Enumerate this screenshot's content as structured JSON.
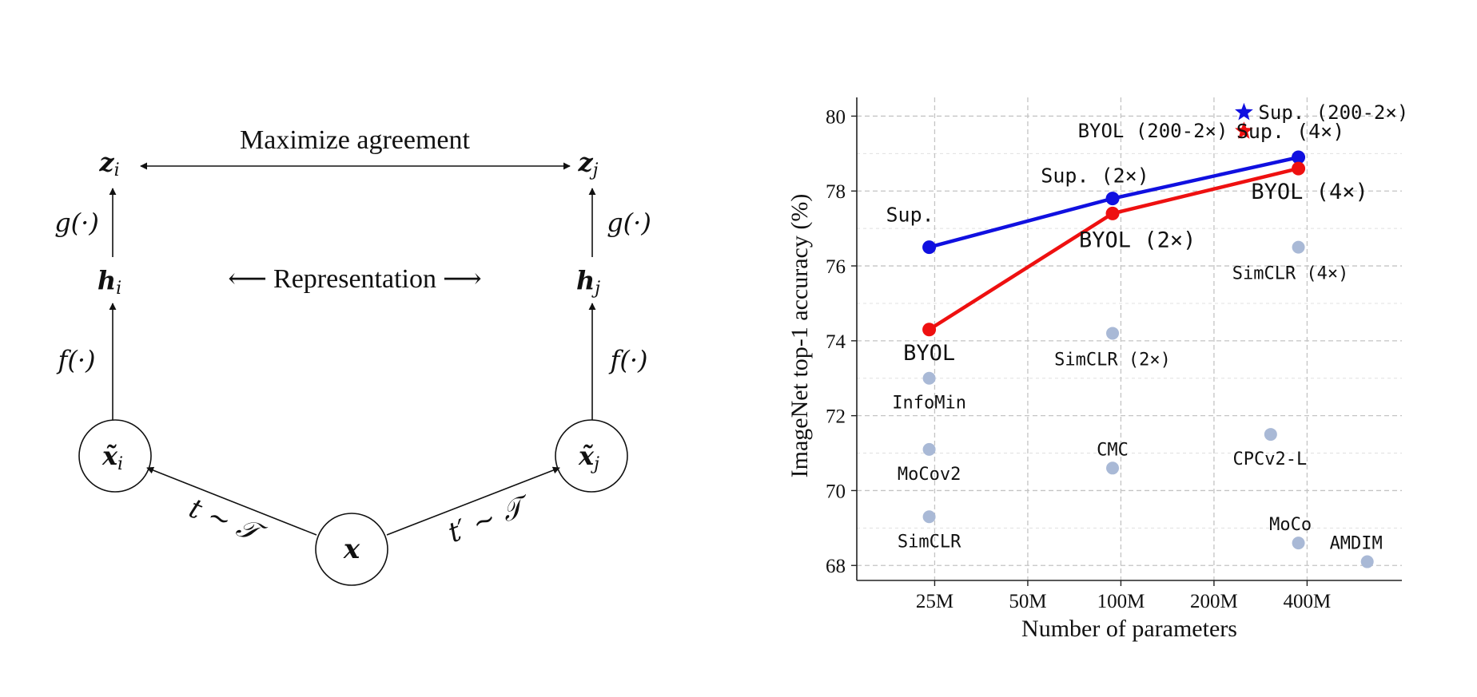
{
  "diagram": {
    "top_label": "Maximize agreement",
    "mid_label": "Representation",
    "mid_arrow_left": "⟵",
    "mid_arrow_right": "⟶",
    "z_left": "z",
    "z_left_sub": "i",
    "z_right": "z",
    "z_right_sub": "j",
    "h_left": "h",
    "h_left_sub": "i",
    "h_right": "h",
    "h_right_sub": "j",
    "g_left": "g(·)",
    "g_right": "g(·)",
    "f_left": "f(·)",
    "f_right": "f(·)",
    "xt_left": "x̃",
    "xt_left_sub": "i",
    "xt_right": "x̃",
    "xt_right_sub": "j",
    "x_center": "x",
    "t_left": "t ∼ 𝒯",
    "t_right": "t′ ∼ 𝒯"
  },
  "chart_data": {
    "type": "scatter",
    "xlabel": "Number of parameters",
    "ylabel": "ImageNet top-1 accuracy (%)",
    "x_scale": "log",
    "xticks": [
      {
        "value": 25,
        "label": "25M"
      },
      {
        "value": 50,
        "label": "50M"
      },
      {
        "value": 100,
        "label": "100M"
      },
      {
        "value": 200,
        "label": "200M"
      },
      {
        "value": 400,
        "label": "400M"
      }
    ],
    "yticks": [
      68,
      70,
      72,
      74,
      76,
      78,
      80
    ],
    "xlim": [
      14,
      810
    ],
    "ylim": [
      67.6,
      80.5
    ],
    "grid": true,
    "colors": {
      "sup": "#1010e0",
      "byol": "#ee1010",
      "other": "#a9b9d6"
    },
    "series": [
      {
        "name": "Sup.",
        "color": "#1010e0",
        "x": [
          24,
          94,
          375
        ],
        "y": [
          76.5,
          77.8,
          78.9
        ]
      },
      {
        "name": "BYOL",
        "color": "#ee1010",
        "x": [
          24,
          94,
          375
        ],
        "y": [
          74.3,
          77.4,
          78.6
        ]
      }
    ],
    "points": [
      {
        "label": "Sup.",
        "x": 24,
        "y": 76.5,
        "group": "sup"
      },
      {
        "label": "Sup. (2×)",
        "x": 94,
        "y": 77.8,
        "group": "sup"
      },
      {
        "label": "Sup. (4×)",
        "x": 375,
        "y": 78.9,
        "group": "sup"
      },
      {
        "label": "BYOL",
        "x": 24,
        "y": 74.3,
        "group": "byol"
      },
      {
        "label": "BYOL (2×)",
        "x": 94,
        "y": 77.4,
        "group": "byol"
      },
      {
        "label": "BYOL (4×)",
        "x": 375,
        "y": 78.6,
        "group": "byol"
      },
      {
        "label": "InfoMin",
        "x": 24,
        "y": 73.0,
        "group": "other"
      },
      {
        "label": "MoCov2",
        "x": 24,
        "y": 71.1,
        "group": "other"
      },
      {
        "label": "SimCLR",
        "x": 24,
        "y": 69.3,
        "group": "other"
      },
      {
        "label": "SimCLR (2×)",
        "x": 94,
        "y": 74.2,
        "group": "other"
      },
      {
        "label": "CMC",
        "x": 94,
        "y": 70.6,
        "group": "other"
      },
      {
        "label": "SimCLR (4×)",
        "x": 375,
        "y": 76.5,
        "group": "other"
      },
      {
        "label": "CPCv2-L",
        "x": 305,
        "y": 71.5,
        "group": "other"
      },
      {
        "label": "MoCo",
        "x": 375,
        "y": 68.6,
        "group": "other"
      },
      {
        "label": "AMDIM",
        "x": 626,
        "y": 68.1,
        "group": "other"
      }
    ],
    "stars": [
      {
        "label": "Sup. (200-2×)",
        "x": 250,
        "y": 80.1,
        "color": "#1010e0"
      },
      {
        "label": "BYOL (200-2×)",
        "x": 250,
        "y": 79.6,
        "color": "#ee1010"
      }
    ]
  }
}
